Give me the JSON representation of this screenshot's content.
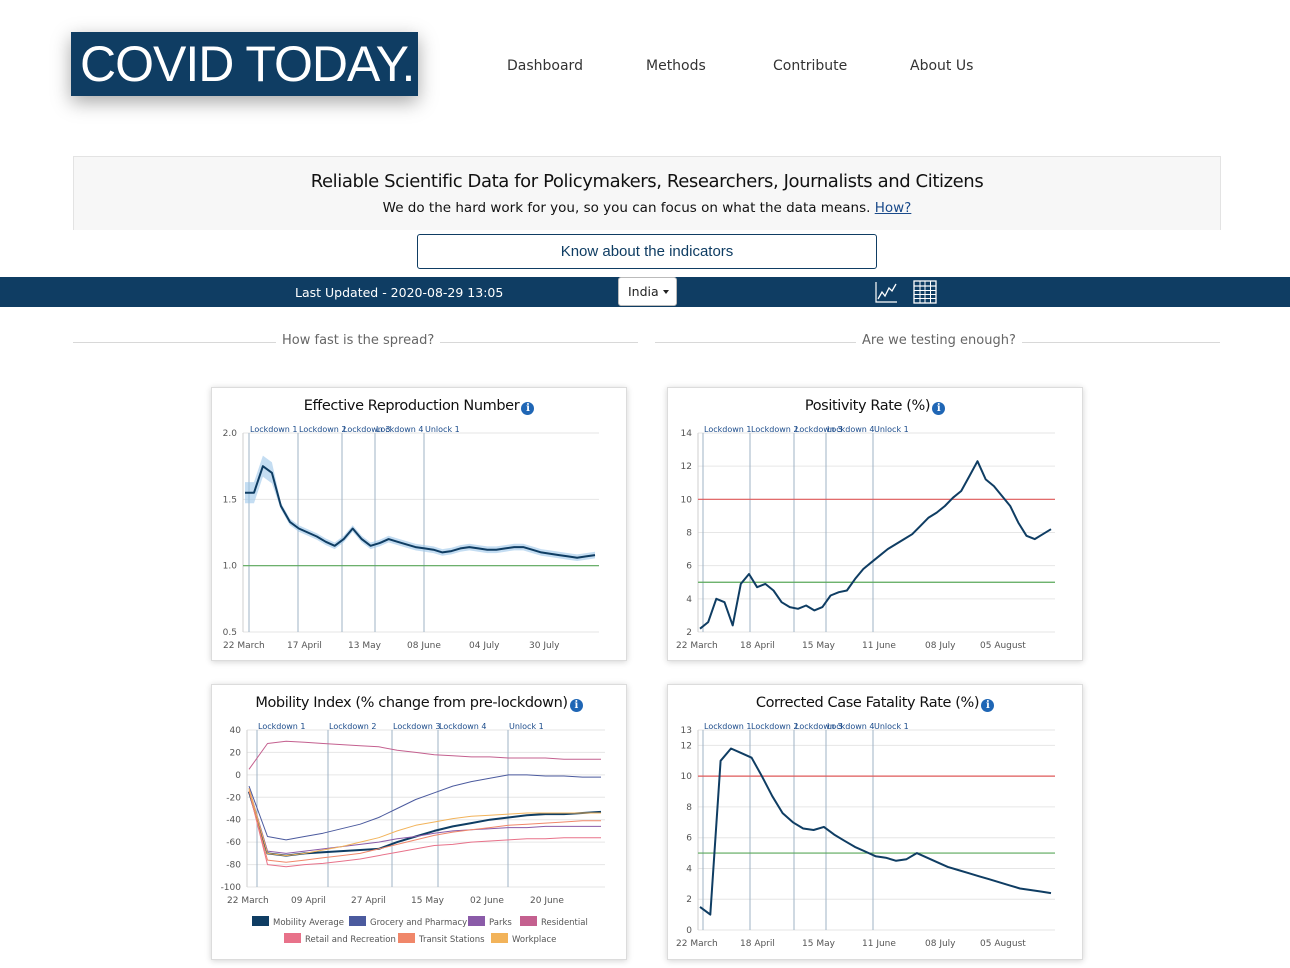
{
  "header": {
    "logo_text": "COVID TODAY.",
    "nav": [
      "Dashboard",
      "Methods",
      "Contribute",
      "About Us"
    ]
  },
  "banner": {
    "title": "Reliable Scientific Data for Policymakers, Researchers, Journalists and Citizens",
    "subtitle": "We do the hard work for you, so you can focus on what the data means.",
    "link": "How?"
  },
  "know_button": "Know about the indicators",
  "statusbar": {
    "last_updated": "Last Updated - 2020-08-29 13:05",
    "country": "India",
    "icons": [
      "line-chart-icon",
      "table-icon"
    ]
  },
  "sections": {
    "left": "How fast is the spread?",
    "right": "Are we testing enough?"
  },
  "colors": {
    "navy": "#0f3d63",
    "threshold_red": "#e05a5a",
    "threshold_green": "#5aa85a",
    "info": "#1f66b5"
  },
  "chart_data": [
    {
      "type": "line",
      "title": "Effective Reproduction Number",
      "y_ticks": [
        "2.0",
        "1.5",
        "1.0",
        "0.5"
      ],
      "ylim": [
        0.5,
        2.0
      ],
      "x_ticks": [
        "22 March",
        "17 April",
        "13 May",
        "08 June",
        "04 July",
        "30 July"
      ],
      "lockdowns": [
        "Lockdown 1",
        "Lockdown 2",
        "Lockdown 3",
        "Lockdown 4",
        "Unlock 1"
      ],
      "thresholds": [
        {
          "value": 1.0,
          "color": "#5aa85a"
        }
      ],
      "series": [
        {
          "values": [
            1.55,
            1.55,
            1.75,
            1.7,
            1.45,
            1.33,
            1.28,
            1.25,
            1.22,
            1.18,
            1.15,
            1.2,
            1.28,
            1.2,
            1.15,
            1.17,
            1.2,
            1.18,
            1.16,
            1.14,
            1.13,
            1.12,
            1.1,
            1.11,
            1.13,
            1.14,
            1.13,
            1.12,
            1.12,
            1.13,
            1.14,
            1.14,
            1.12,
            1.1,
            1.09,
            1.08,
            1.07,
            1.06,
            1.07,
            1.08
          ]
        }
      ]
    },
    {
      "type": "line",
      "title": "Positivity Rate (%)",
      "y_ticks": [
        "14",
        "12",
        "10",
        "8",
        "6",
        "4",
        "2"
      ],
      "ylim": [
        2,
        14
      ],
      "x_ticks": [
        "22 March",
        "18 April",
        "15 May",
        "11 June",
        "08 July",
        "05 August"
      ],
      "lockdowns": [
        "Lockdown 1",
        "Lockdown 2",
        "Lockdown 3",
        "Lockdown 4",
        "Unlock 1"
      ],
      "thresholds": [
        {
          "value": 10,
          "color": "#e05a5a"
        },
        {
          "value": 5,
          "color": "#5aa85a"
        }
      ],
      "series": [
        {
          "values": [
            2.2,
            2.6,
            4.0,
            3.8,
            2.4,
            4.9,
            5.5,
            4.7,
            4.9,
            4.5,
            3.8,
            3.5,
            3.4,
            3.6,
            3.3,
            3.5,
            4.2,
            4.4,
            4.5,
            5.2,
            5.8,
            6.2,
            6.6,
            7.0,
            7.3,
            7.6,
            7.9,
            8.4,
            8.9,
            9.2,
            9.6,
            10.1,
            10.5,
            11.4,
            12.3,
            11.2,
            10.8,
            10.2,
            9.6,
            8.6,
            7.8,
            7.6,
            7.9,
            8.2
          ]
        }
      ]
    },
    {
      "type": "line",
      "title": "Mobility Index (% change from pre-lockdown)",
      "y_ticks": [
        "40",
        "20",
        "0",
        "-20",
        "-40",
        "-60",
        "-80",
        "-100"
      ],
      "ylim": [
        -100,
        40
      ],
      "x_ticks": [
        "22 March",
        "09 April",
        "27 April",
        "15 May",
        "02 June",
        "20 June"
      ],
      "lockdowns": [
        "Lockdown 1",
        "Lockdown 2",
        "Lockdown 3",
        "Lockdown 4",
        "Unlock 1"
      ],
      "legend": [
        "Mobility Average",
        "Grocery and Pharmacy",
        "Parks",
        "Residential",
        "Retail and Recreation",
        "Transit Stations",
        "Workplace"
      ],
      "series": [
        {
          "name": "Mobility Average",
          "color": "#0f3d63",
          "values": [
            -15,
            -70,
            -72,
            -70,
            -69,
            -68,
            -67,
            -66,
            -60,
            -55,
            -50,
            -46,
            -43,
            -40,
            -38,
            -36,
            -35,
            -35,
            -34,
            -33
          ]
        },
        {
          "name": "Grocery and Pharmacy",
          "color": "#4b5a9e",
          "values": [
            -10,
            -55,
            -58,
            -55,
            -52,
            -48,
            -44,
            -38,
            -30,
            -22,
            -16,
            -10,
            -6,
            -3,
            0,
            0,
            -1,
            -1,
            -2,
            -2
          ]
        },
        {
          "name": "Parks",
          "color": "#8a5ba8",
          "values": [
            -12,
            -68,
            -70,
            -68,
            -66,
            -64,
            -62,
            -60,
            -57,
            -55,
            -52,
            -50,
            -49,
            -48,
            -47,
            -47,
            -46,
            -46,
            -46,
            -46
          ]
        },
        {
          "name": "Residential",
          "color": "#c4608f",
          "values": [
            5,
            28,
            30,
            29,
            28,
            27,
            26,
            25,
            22,
            20,
            18,
            17,
            16,
            16,
            15,
            15,
            15,
            14,
            14,
            14
          ]
        },
        {
          "name": "Retail and Recreation",
          "color": "#e8728a",
          "values": [
            -14,
            -80,
            -82,
            -80,
            -79,
            -77,
            -75,
            -72,
            -69,
            -66,
            -63,
            -62,
            -60,
            -59,
            -58,
            -57,
            -57,
            -56,
            -56,
            -56
          ]
        },
        {
          "name": "Transit Stations",
          "color": "#f0876a",
          "values": [
            -14,
            -76,
            -78,
            -76,
            -74,
            -72,
            -70,
            -66,
            -62,
            -58,
            -54,
            -51,
            -49,
            -47,
            -45,
            -44,
            -43,
            -42,
            -41,
            -41
          ]
        },
        {
          "name": "Workplace",
          "color": "#f2b35a",
          "values": [
            -12,
            -70,
            -72,
            -70,
            -67,
            -64,
            -60,
            -56,
            -50,
            -45,
            -42,
            -39,
            -37,
            -36,
            -35,
            -34,
            -34,
            -34,
            -34,
            -34
          ]
        }
      ]
    },
    {
      "type": "line",
      "title": "Corrected Case Fatality Rate (%)",
      "y_ticks": [
        "13",
        "12",
        "10",
        "8",
        "6",
        "4",
        "2",
        "0"
      ],
      "ylim": [
        0,
        13
      ],
      "x_ticks": [
        "22 March",
        "18 April",
        "15 May",
        "11 June",
        "08 July",
        "05 August"
      ],
      "lockdowns": [
        "Lockdown 1",
        "Lockdown 2",
        "Lockdown 3",
        "Lockdown 4",
        "Unlock 1"
      ],
      "thresholds": [
        {
          "value": 10,
          "color": "#e05a5a"
        },
        {
          "value": 5,
          "color": "#5aa85a"
        }
      ],
      "series": [
        {
          "values": [
            1.5,
            1.0,
            11.0,
            11.8,
            11.5,
            11.2,
            10.0,
            8.7,
            7.6,
            7.0,
            6.6,
            6.5,
            6.7,
            6.2,
            5.8,
            5.4,
            5.1,
            4.8,
            4.7,
            4.5,
            4.6,
            5.0,
            4.7,
            4.4,
            4.1,
            3.9,
            3.7,
            3.5,
            3.3,
            3.1,
            2.9,
            2.7,
            2.6,
            2.5,
            2.4
          ]
        }
      ]
    }
  ]
}
